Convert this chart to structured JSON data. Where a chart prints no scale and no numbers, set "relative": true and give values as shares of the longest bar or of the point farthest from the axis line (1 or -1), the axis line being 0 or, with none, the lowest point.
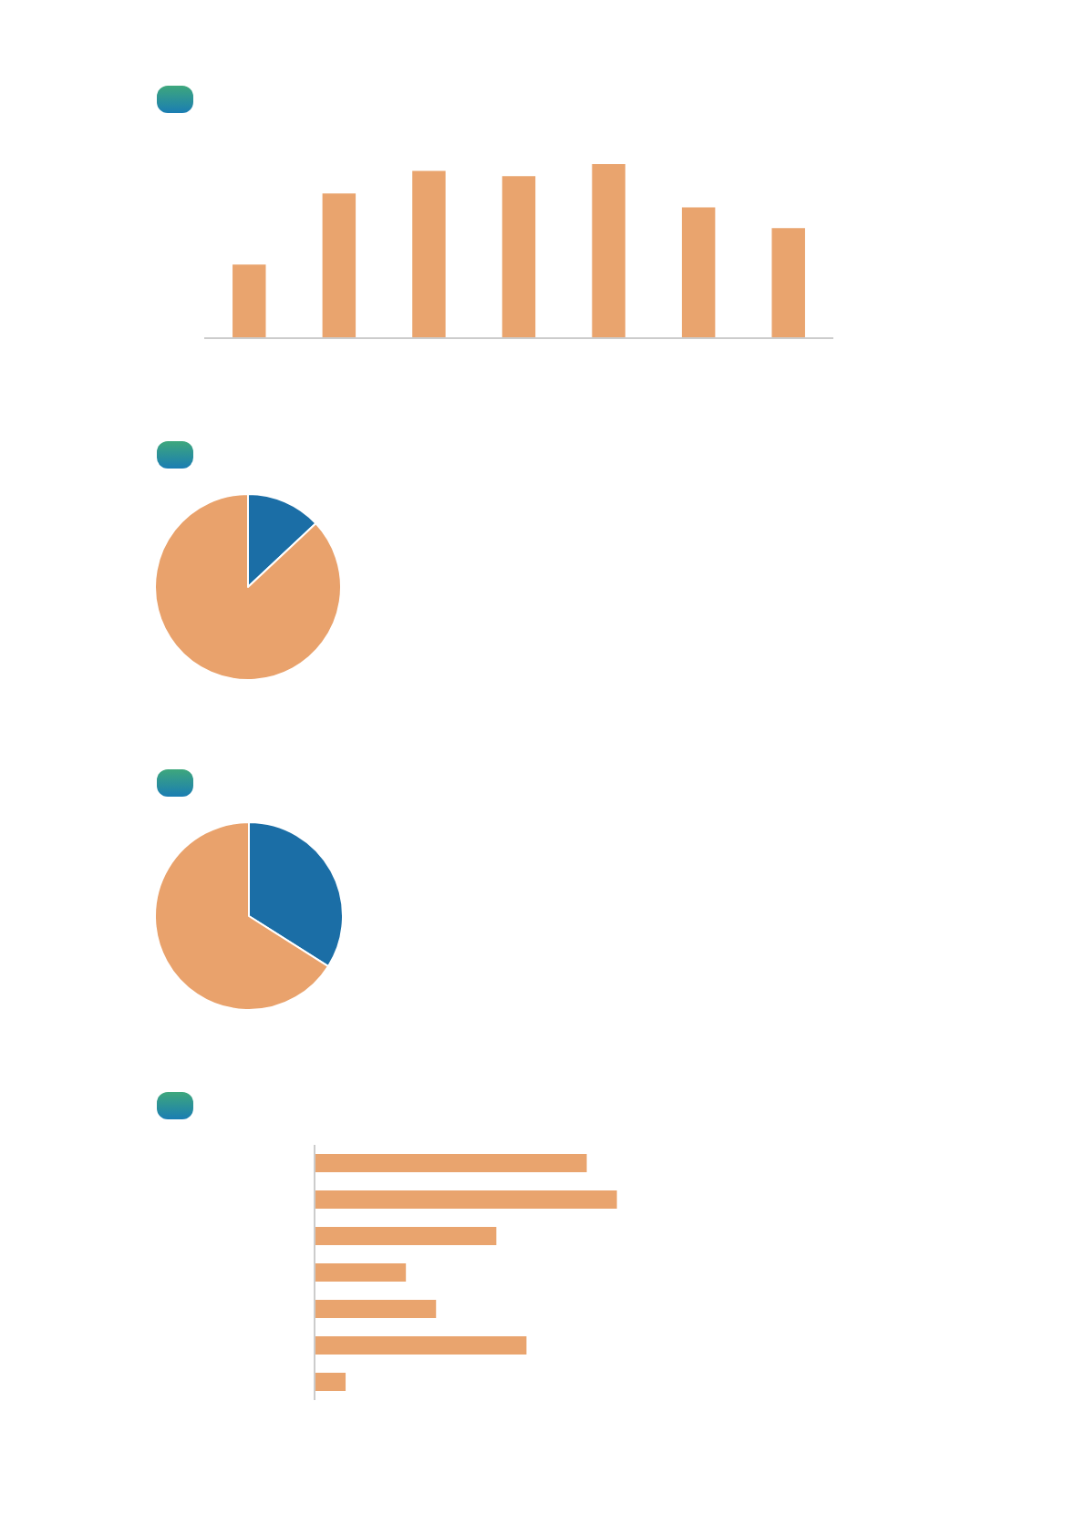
{
  "chart_data": [
    {
      "type": "bar",
      "categories": [
        null,
        null,
        null,
        null,
        null,
        null,
        null
      ],
      "values": [
        0.42,
        0.83,
        0.96,
        0.93,
        1,
        0.75,
        0.63
      ],
      "color": "#e9a46e",
      "relative": true
    },
    {
      "type": "pie",
      "categories": [
        null,
        null
      ],
      "values": [
        13,
        87
      ],
      "colors": [
        "#1b6ea6",
        "#e9a26c"
      ]
    },
    {
      "type": "pie",
      "categories": [
        null,
        null
      ],
      "values": [
        34,
        66
      ],
      "colors": [
        "#1b6ea6",
        "#e9a26c"
      ]
    },
    {
      "type": "bar",
      "orientation": "horizontal",
      "categories": [
        null,
        null,
        null,
        null,
        null,
        null,
        null
      ],
      "values": [
        0.9,
        1,
        0.6,
        0.3,
        0.4,
        0.7,
        0.1
      ],
      "color": "#e9a46e",
      "relative": true
    }
  ]
}
